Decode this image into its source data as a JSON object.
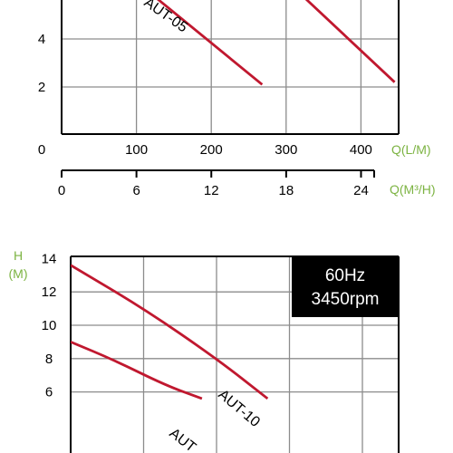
{
  "chart_data": [
    {
      "type": "line",
      "title": "",
      "xlabel": "Q(L/M)",
      "x2label": "Q(M³/H)",
      "ylabel": "",
      "xlim": [
        0,
        450
      ],
      "ylim": [
        1,
        6
      ],
      "x_ticks": [
        "0",
        "100",
        "200",
        "300",
        "400"
      ],
      "x2_ticks": [
        "0",
        "6",
        "12",
        "18",
        "24"
      ],
      "y_ticks": [
        "2",
        "4"
      ],
      "grid": true,
      "series": [
        {
          "name": "AUT-05",
          "x": [
            115,
            268
          ],
          "y": [
            6.0,
            2.1
          ]
        },
        {
          "name": "",
          "x": [
            315,
            445
          ],
          "y": [
            6.0,
            2.2
          ]
        }
      ]
    },
    {
      "type": "line",
      "title": "",
      "xlabel": "",
      "ylabel": "H\n(M)",
      "ylabel_lines": [
        "H",
        "(M)"
      ],
      "xlim": [
        0,
        450
      ],
      "ylim": [
        5.5,
        14
      ],
      "y_ticks": [
        "6",
        "8",
        "10",
        "12",
        "14"
      ],
      "grid": true,
      "badge": [
        "60Hz",
        "3450rpm"
      ],
      "series": [
        {
          "name": "AUT-10",
          "x": [
            0,
            100,
            200,
            270
          ],
          "y": [
            13.6,
            11.0,
            8.0,
            5.6
          ]
        },
        {
          "name": "AUT",
          "x": [
            0,
            60,
            130,
            180
          ],
          "y": [
            9.0,
            7.9,
            6.4,
            5.6
          ]
        }
      ]
    }
  ],
  "colors": {
    "curve": "#c0182f",
    "axis_unit": "#7cb342",
    "grid": "#8c8c8c",
    "badge_bg": "#000000"
  }
}
